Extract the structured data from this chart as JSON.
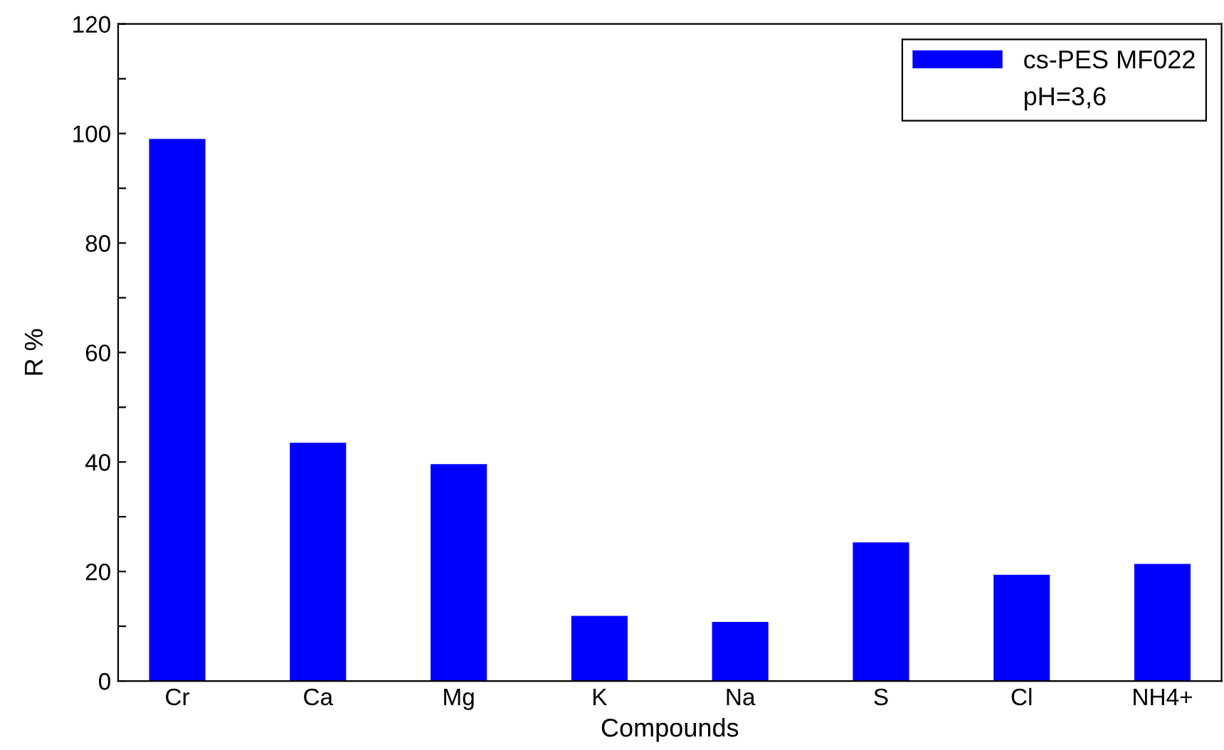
{
  "chart_data": {
    "type": "bar",
    "xlabel": "Compounds",
    "ylabel": "R %",
    "categories": [
      "Cr",
      "Ca",
      "Mg",
      "K",
      "Na",
      "S",
      "Cl",
      "NH4+"
    ],
    "series": [
      {
        "name": "cs-PES MF022",
        "color": "#0000ff",
        "values": [
          99.0,
          43.5,
          39.6,
          11.9,
          10.8,
          25.3,
          19.4,
          21.4
        ]
      }
    ],
    "annotations": [
      "pH=3,6"
    ],
    "ylim": [
      0,
      120
    ],
    "yticks": [
      0,
      {
        "value": 10,
        "label": null
      },
      20,
      {
        "value": 30,
        "label": null
      },
      40,
      {
        "value": 50,
        "label": null
      },
      60,
      {
        "value": 70,
        "label": null
      },
      80,
      {
        "value": 90,
        "label": null
      },
      100,
      {
        "value": 110,
        "label": null
      },
      120
    ],
    "grid": false,
    "legend": "top right"
  }
}
